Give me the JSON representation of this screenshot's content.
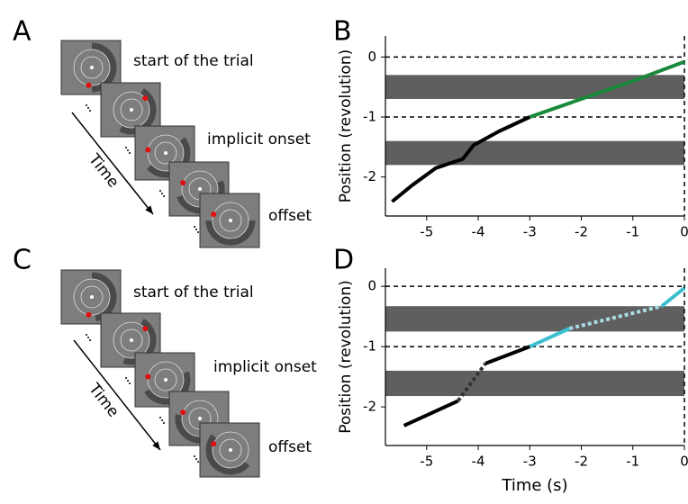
{
  "panel_labels": [
    "A",
    "B",
    "C",
    "D"
  ],
  "diagrams": [
    {
      "labels": [
        "start of the trial",
        "implicit onset",
        "offset"
      ],
      "arrow_label": "Time"
    },
    {
      "labels": [
        "start of the trial",
        "implicit onset",
        "offset"
      ],
      "arrow_label": "Time"
    }
  ],
  "chart_data": [
    {
      "type": "line",
      "ylabel": "Position (revolution)",
      "xlim": [
        -5.8,
        0
      ],
      "ylim": [
        -2.65,
        0.35
      ],
      "xticks": [
        -5,
        -4,
        -3,
        -2,
        -1,
        0
      ],
      "yticks": [
        0,
        -1,
        -2
      ],
      "bands": [
        [
          -0.3,
          -0.7
        ],
        [
          -1.4,
          -1.8
        ]
      ],
      "band_color": "#5f5f5f",
      "reference_lines": [
        0,
        -1
      ],
      "vline": 0,
      "series": [
        {
          "color": "#000000",
          "style": "solid",
          "x": [
            -5.67,
            -5.3,
            -4.82,
            -4.3,
            -4.09,
            -3.6,
            -3
          ],
          "values": [
            -2.41,
            -2.15,
            -1.85,
            -1.7,
            -1.47,
            -1.24,
            -1
          ]
        },
        {
          "color": "#1a8a3a",
          "style": "solid",
          "x": [
            -3,
            -2,
            -1,
            0
          ],
          "values": [
            -1,
            -0.7,
            -0.4,
            -0.08
          ]
        }
      ]
    },
    {
      "type": "line",
      "xlabel": "Time (s)",
      "ylabel": "Position (revolution)",
      "xlim": [
        -5.8,
        0
      ],
      "ylim": [
        -2.64,
        0.3
      ],
      "xticks": [
        -5,
        -4,
        -3,
        -2,
        -1,
        0
      ],
      "yticks": [
        0,
        -1,
        -2
      ],
      "bands": [
        [
          -0.33,
          -0.75
        ],
        [
          -1.4,
          -1.82
        ]
      ],
      "band_color": "#5f5f5f",
      "reference_lines": [
        0,
        -1
      ],
      "vline": 0,
      "series": [
        {
          "color": "#000000",
          "style": "solid",
          "x": [
            -5.44,
            -4.39
          ],
          "values": [
            -2.31,
            -1.9
          ]
        },
        {
          "color": "#333333",
          "style": "dotted",
          "x": [
            -4.39,
            -3.86
          ],
          "values": [
            -1.9,
            -1.28
          ]
        },
        {
          "color": "#000000",
          "style": "solid",
          "x": [
            -3.86,
            -3
          ],
          "values": [
            -1.28,
            -1
          ]
        },
        {
          "color": "#3cbfcf",
          "style": "solid",
          "x": [
            -3,
            -2.23
          ],
          "values": [
            -1,
            -0.7
          ]
        },
        {
          "color": "#a8dde4",
          "style": "dotted",
          "x": [
            -2.23,
            -0.44
          ],
          "values": [
            -0.7,
            -0.33
          ]
        },
        {
          "color": "#3cbfcf",
          "style": "solid",
          "x": [
            -0.44,
            0
          ],
          "values": [
            -0.33,
            -0.03
          ]
        }
      ]
    }
  ]
}
